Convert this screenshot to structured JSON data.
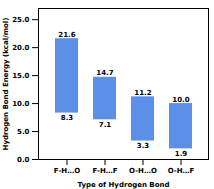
{
  "chart_data": {
    "type": "bar",
    "categories": [
      "F-H…O",
      "F-H…F",
      "O-H…O",
      "O-H…F"
    ],
    "values": [
      21.6,
      14.7,
      11.2,
      10.0
    ],
    "value_labels": [
      "21.6",
      "14.7",
      "11.2",
      "10.0"
    ],
    "bottom_values": [
      8.3,
      7.1,
      3.3,
      1.9
    ],
    "color": "#5B8FE8",
    "xlabel": "Type of Hydrogen Bond",
    "ylabel": "Hydrogen Bond Energy (kcal/mol)",
    "ylim": [
      0.0,
      27.0
    ],
    "yticks": [
      {
        "value": 0,
        "label": "0.0"
      },
      {
        "value": 5,
        "label": "5.0"
      },
      {
        "value": 10,
        "label": "10.0"
      },
      {
        "value": 15,
        "label": "15.0"
      },
      {
        "value": 20,
        "label": "20.0"
      },
      {
        "value": 25,
        "label": "25.0"
      }
    ],
    "data_labels": true,
    "grid": false
  }
}
